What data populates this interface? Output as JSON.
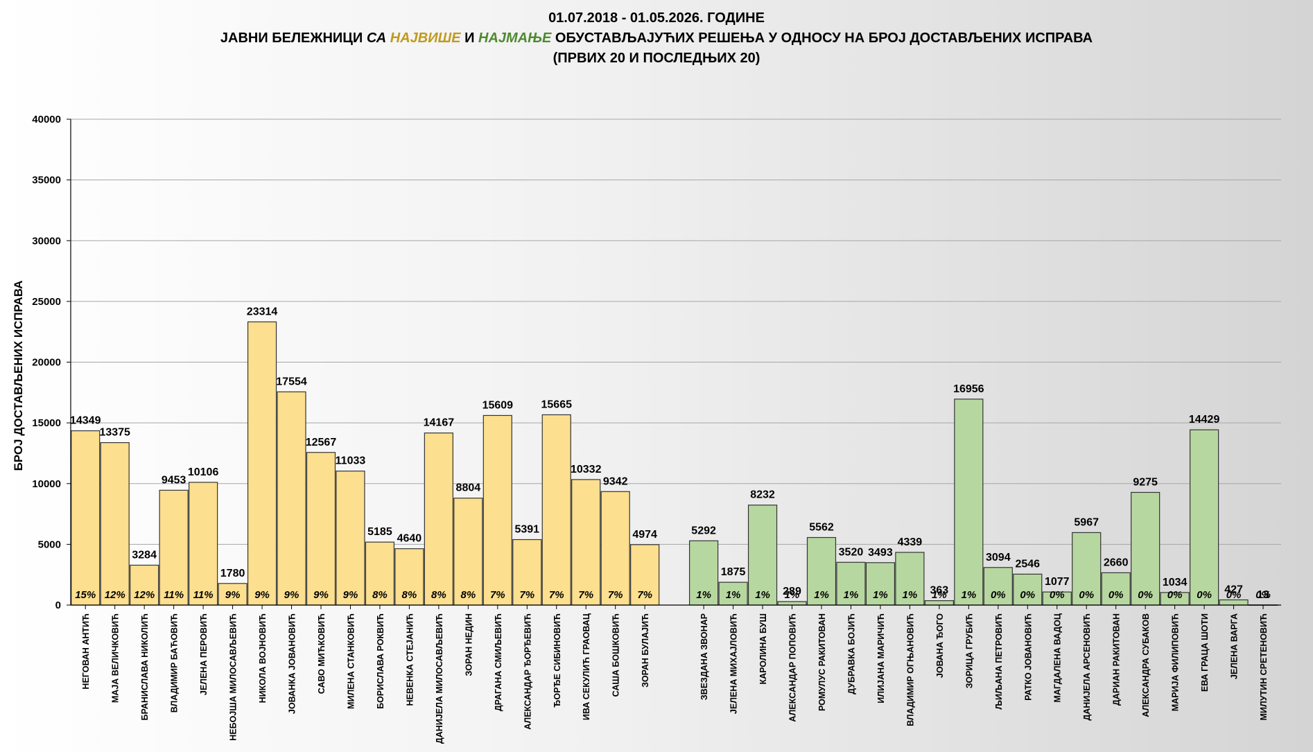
{
  "title": {
    "line1": "01.07.2018 - 01.05.2026. ГОДИНЕ",
    "line2_part1": "ЈАВНИ БЕЛЕЖНИЦИ ",
    "line2_sa": "СА ",
    "line2_najvise": "НАЈВИШЕ",
    "line2_i": " И ",
    "line2_najmanje": "НАЈМАЊЕ",
    "line2_part2": " ОБУСТАВЉАЈУЋИХ РЕШЕЊА У ОДНОСУ НА БРОЈ ДОСТАВЉЕНИХ ИСПРАВА",
    "line3": "(ПРВИХ 20 И ПОСЛЕДЊИХ 20)"
  },
  "colors": {
    "najvise": "#c09a1d",
    "najmanje": "#4e8a2f",
    "top_fill": "#fcdf8f",
    "bottom_fill": "#b7d7a0",
    "bar_stroke": "#333333",
    "grid": "#a6a6a6"
  },
  "chart_data": {
    "type": "bar",
    "ylabel": "БРОЈ ДОСТАВЉЕНИХ ИСПРАВА",
    "ylim": [
      0,
      40000
    ],
    "yticks": [
      "0",
      "5000",
      "10000",
      "15000",
      "20000",
      "25000",
      "30000",
      "35000",
      "40000"
    ],
    "grid": true,
    "series": [
      {
        "group": "top20",
        "categories": [
          "НЕГОВАН АНТИЋ",
          "МАЈА ВЕЛИЧКОВИЋ",
          "БРАНИСЛАВА НИКОЛИЋ",
          "ВЛАДИМИР БАЋОВИЋ",
          "ЈЕЛЕНА ПЕРОВИЋ",
          "НЕБОЈША МИЛОСАВЉЕВИЋ",
          "НИКОЛА ВОЈНОВИЋ",
          "ЈОВАНКА ЈОВАНОВИЋ",
          "САВО МИЋКОВИЋ",
          "МИЛЕНА СТАНКОВИЋ",
          "БОРИСЛАВА РОКВИЋ",
          "НЕВЕНКА СТЕЈАНИЋ",
          "ДАНИЈЕЛА МИЛОСАВЉЕВИЋ",
          "ЗОРАН НЕДИН",
          "ДРАГАНА СМИЉЕВИЋ",
          "АЛЕКСАНДАР ЂОРЂЕВИЋ",
          "ЂОРЂЕ СИБИНОВИЋ",
          "ИВА СЕКУЛИЋ ГРАОВАЦ",
          "САША БОШКОВИЋ",
          "ЗОРАН БУЛАЈИЋ"
        ],
        "values": [
          14349,
          13375,
          3284,
          9453,
          10106,
          1780,
          23314,
          17554,
          12567,
          11033,
          5185,
          4640,
          14167,
          8804,
          15609,
          5391,
          15665,
          10332,
          9342,
          4974
        ],
        "percents": [
          "15%",
          "12%",
          "12%",
          "11%",
          "11%",
          "9%",
          "9%",
          "9%",
          "9%",
          "9%",
          "8%",
          "8%",
          "8%",
          "8%",
          "7%",
          "7%",
          "7%",
          "7%",
          "7%",
          "7%"
        ]
      },
      {
        "group": "bottom20",
        "categories": [
          "ЗВЕЗДАНА ЗВОНАР",
          "ЈЕЛЕНА МИХАЈЛОВИЋ",
          "КАРОЛИНА БУШ",
          "АЛЕКСАНДАР ПОПОВИЋ",
          "РОМУЛУС РАКИТОВАН",
          "ДУБРАВКА БОЈИЋ",
          "ИЛИЈАНА МАРИЧИЋ",
          "ВЛАДИМИР ОГЊАНОВИЋ",
          "ЈОВАНА ЂОГО",
          "ЗОРИЦА ГРУБИЋ",
          "ЉИЉАНА ПЕТРОВИЋ",
          "РАТКО ЈОВАНОВИЋ",
          "МАГДАЛЕНА ВАДОЦ",
          "ДАНИЈЕЛА АРСЕНОВИЋ",
          "ДАРИАН РАКИТОВАН",
          "АЛЕКСАНДРА СУБАКОВ",
          "МАРИЈА ФИЛИПОВИЋ",
          "ЕВА ГРАЦА ШОТИ",
          "ЈЕЛЕНА ВАРГА",
          "МИЛУТИН СРЕТЕНОВИЋ"
        ],
        "values": [
          5292,
          1875,
          8232,
          289,
          5562,
          3520,
          3493,
          4339,
          363,
          16956,
          3094,
          2546,
          1077,
          5967,
          2660,
          9275,
          1034,
          14429,
          427,
          13
        ],
        "percents": [
          "1%",
          "1%",
          "1%",
          "1%",
          "1%",
          "1%",
          "1%",
          "1%",
          "1%",
          "1%",
          "0%",
          "0%",
          "0%",
          "0%",
          "0%",
          "0%",
          "0%",
          "0%",
          "0%",
          "0%"
        ]
      }
    ]
  }
}
